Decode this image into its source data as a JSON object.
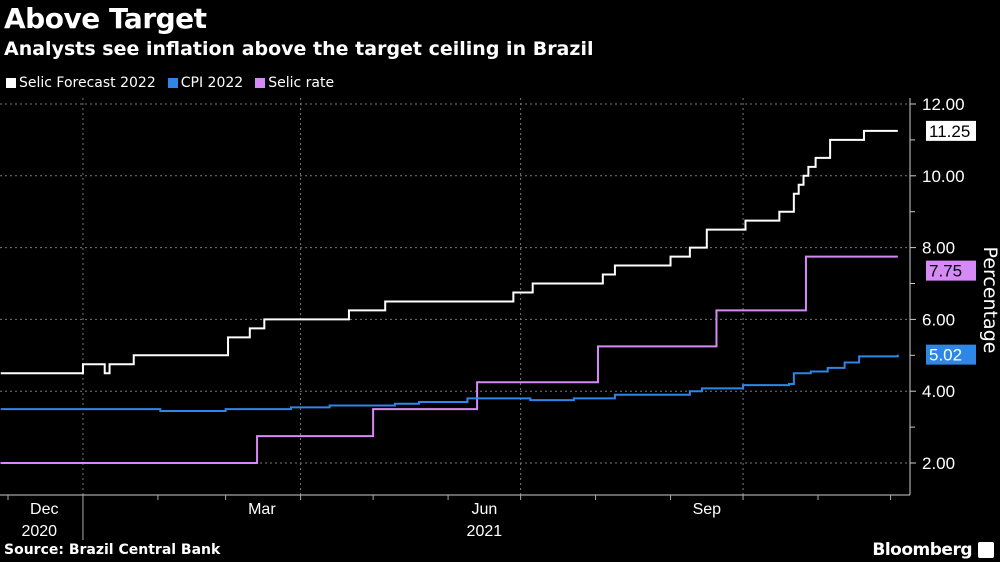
{
  "title": "Above Target",
  "subtitle": "Analysts see inflation above the target ceiling in Brazil",
  "source": "Source: Brazil Central Bank",
  "brand": "Bloomberg",
  "chart_data": {
    "type": "line",
    "title": "Above Target",
    "subtitle": "Analysts see inflation above the target ceiling in Brazil",
    "ylabel": "Percentage",
    "ylim": [
      1.0,
      12.3
    ],
    "yticks": [
      "2.00",
      "4.00",
      "6.00",
      "8.00",
      "10.00",
      "12.00"
    ],
    "ytick_values": [
      2,
      4,
      6,
      8,
      10,
      12
    ],
    "xlim": [
      "2020-11-28",
      "2021-12-08"
    ],
    "xticks": [
      {
        "label": "Dec",
        "date": "2020-12-16"
      },
      {
        "label": "Mar",
        "date": "2021-03-16"
      },
      {
        "label": "Jun",
        "date": "2021-06-16"
      },
      {
        "label": "Sep",
        "date": "2021-09-16"
      }
    ],
    "year_labels": [
      {
        "label": "2020",
        "date": "2020-12-16"
      },
      {
        "label": "2021",
        "date": "2021-06-16"
      }
    ],
    "grid": true,
    "legend_position": "top-left",
    "series": [
      {
        "name": "Selic Forecast 2022",
        "color": "#ffffff",
        "last_label": "11.25",
        "points": [
          [
            "2020-11-28",
            4.5
          ],
          [
            "2021-01-01",
            4.75
          ],
          [
            "2021-01-10",
            4.5
          ],
          [
            "2021-01-12",
            4.75
          ],
          [
            "2021-01-22",
            5.0
          ],
          [
            "2021-03-02",
            5.5
          ],
          [
            "2021-03-11",
            5.75
          ],
          [
            "2021-03-17",
            6.0
          ],
          [
            "2021-04-21",
            6.25
          ],
          [
            "2021-05-06",
            6.5
          ],
          [
            "2021-06-28",
            6.75
          ],
          [
            "2021-07-06",
            7.0
          ],
          [
            "2021-08-04",
            7.25
          ],
          [
            "2021-08-09",
            7.5
          ],
          [
            "2021-09-01",
            7.75
          ],
          [
            "2021-09-09",
            8.0
          ],
          [
            "2021-09-16",
            8.5
          ],
          [
            "2021-10-02",
            8.75
          ],
          [
            "2021-10-16",
            9.0
          ],
          [
            "2021-10-22",
            9.5
          ],
          [
            "2021-10-24",
            9.75
          ],
          [
            "2021-10-26",
            10.0
          ],
          [
            "2021-10-28",
            10.25
          ],
          [
            "2021-10-31",
            10.5
          ],
          [
            "2021-11-06",
            11.0
          ],
          [
            "2021-11-20",
            11.25
          ],
          [
            "2021-12-04",
            11.25
          ]
        ]
      },
      {
        "name": "CPI 2022",
        "color": "#2e86e6",
        "last_label": "5.02",
        "points": [
          [
            "2020-11-28",
            3.5
          ],
          [
            "2021-02-02",
            3.45
          ],
          [
            "2021-03-01",
            3.5
          ],
          [
            "2021-03-28",
            3.55
          ],
          [
            "2021-04-13",
            3.6
          ],
          [
            "2021-05-10",
            3.65
          ],
          [
            "2021-05-20",
            3.7
          ],
          [
            "2021-06-09",
            3.8
          ],
          [
            "2021-07-05",
            3.75
          ],
          [
            "2021-07-23",
            3.8
          ],
          [
            "2021-08-09",
            3.9
          ],
          [
            "2021-09-09",
            4.0
          ],
          [
            "2021-09-14",
            4.08
          ],
          [
            "2021-10-01",
            4.17
          ],
          [
            "2021-10-20",
            4.2
          ],
          [
            "2021-10-22",
            4.5
          ],
          [
            "2021-10-29",
            4.55
          ],
          [
            "2021-11-05",
            4.65
          ],
          [
            "2021-11-12",
            4.8
          ],
          [
            "2021-11-18",
            4.97
          ],
          [
            "2021-12-04",
            5.02
          ]
        ]
      },
      {
        "name": "Selic rate",
        "color": "#d68af5",
        "last_label": "7.75",
        "points": [
          [
            "2020-11-28",
            2.0
          ],
          [
            "2021-03-14",
            2.75
          ],
          [
            "2021-05-01",
            3.5
          ],
          [
            "2021-06-13",
            4.25
          ],
          [
            "2021-08-02",
            5.25
          ],
          [
            "2021-09-20",
            6.25
          ],
          [
            "2021-10-27",
            7.75
          ],
          [
            "2021-12-04",
            7.75
          ]
        ]
      }
    ]
  }
}
